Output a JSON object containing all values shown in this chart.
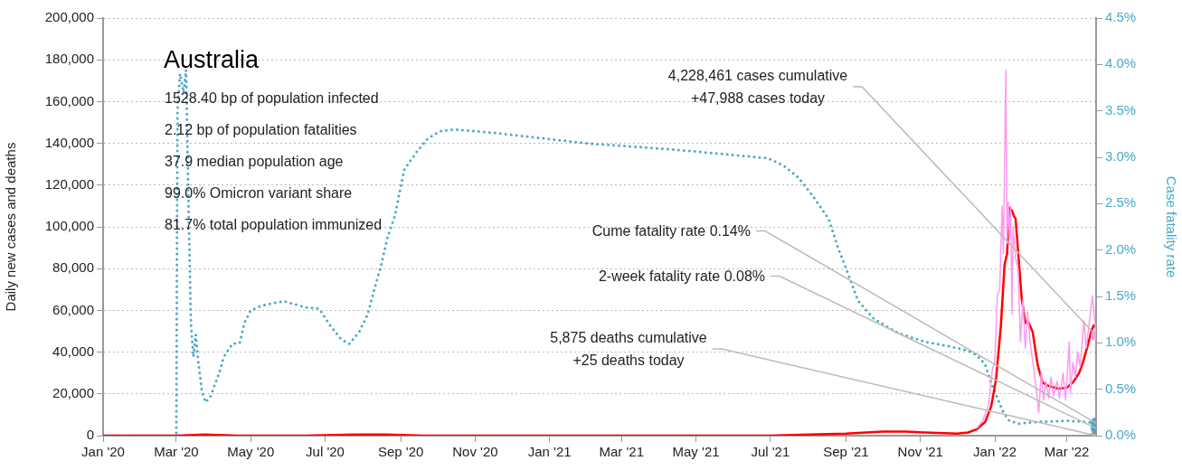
{
  "chart_data": {
    "type": "line",
    "title": "Australia",
    "ylabel": "Daily new cases and deaths",
    "y2label": "Case fatality rate",
    "annotations": [
      "1528.40 bp of population infected",
      "2.12 bp of population fatalities",
      "37.9 median population age",
      "99.0% Omicron variant share",
      "81.7% total population immunized",
      {
        "text": "4,228,461 cases cumulative\n+47,988 cases today",
        "x": "2022-03-25",
        "y": 47988
      },
      {
        "text": "Cume fatality rate 0.14%",
        "x": "2022-03-25",
        "y": 6000
      },
      {
        "text": "2-week fatality rate 0.08%",
        "x": "2022-03-25",
        "y": 3500
      },
      {
        "text": "5,875 deaths cumulative\n+25 deaths today",
        "x": "2022-03-25",
        "y": 25
      }
    ],
    "xlim": [
      "2020-01-01",
      "2022-03-25"
    ],
    "xticks": [
      {
        "value": "2020-01-01",
        "label": "Jan '20"
      },
      {
        "value": "2020-03-01",
        "label": "Mar '20"
      },
      {
        "value": "2020-05-01",
        "label": "May '20"
      },
      {
        "value": "2020-07-01",
        "label": "Jul '20"
      },
      {
        "value": "2020-09-01",
        "label": "Sep '20"
      },
      {
        "value": "2020-11-01",
        "label": "Nov '20"
      },
      {
        "value": "2021-01-01",
        "label": "Jan '21"
      },
      {
        "value": "2021-03-01",
        "label": "Mar '21"
      },
      {
        "value": "2021-05-01",
        "label": "May '21"
      },
      {
        "value": "2021-07-01",
        "label": "Jul '21"
      },
      {
        "value": "2021-09-01",
        "label": "Sep '21"
      },
      {
        "value": "2021-11-01",
        "label": "Nov '21"
      },
      {
        "value": "2022-01-01",
        "label": "Jan '22"
      },
      {
        "value": "2022-03-01",
        "label": "Mar '22"
      }
    ],
    "ylim": [
      0,
      200000
    ],
    "yticks": [
      0,
      {
        "value": 20000,
        "label": "20,000"
      },
      {
        "value": 40000,
        "label": "40,000"
      },
      {
        "value": 60000,
        "label": "60,000"
      },
      {
        "value": 80000,
        "label": "80,000"
      },
      {
        "value": 100000,
        "label": "100,000"
      },
      {
        "value": 120000,
        "label": "120,000"
      },
      {
        "value": 140000,
        "label": "140,000"
      },
      {
        "value": 160000,
        "label": "160,000"
      },
      {
        "value": 180000,
        "label": "180,000"
      },
      {
        "value": 200000,
        "label": "200,000"
      }
    ],
    "y2lim": [
      0,
      4.5
    ],
    "y2ticks": [
      {
        "value": 0,
        "label": "0.0%"
      },
      {
        "value": 0.5,
        "label": "0.5%"
      },
      {
        "value": 1,
        "label": "1.0%"
      },
      {
        "value": 1.5,
        "label": "1.5%"
      },
      {
        "value": 2,
        "label": "2.0%"
      },
      {
        "value": 2.5,
        "label": "2.5%"
      },
      {
        "value": 3,
        "label": "3.0%"
      },
      {
        "value": 3.5,
        "label": "3.5%"
      },
      {
        "value": 4,
        "label": "4.0%"
      },
      {
        "value": 4.5,
        "label": "4.5%"
      }
    ],
    "grid": "y",
    "legend": false,
    "series": [
      {
        "color": "#ff99ee",
        "x": [
          "2021-12-17",
          "2021-12-22",
          "2021-12-27",
          "2021-12-30",
          "2022-01-01",
          "2022-01-03",
          "2022-01-05",
          "2022-01-07",
          "2022-01-08",
          "2022-01-10",
          "2022-01-11",
          "2022-01-12",
          "2022-01-13",
          "2022-01-14",
          "2022-01-15",
          "2022-01-16",
          "2022-01-18",
          "2022-01-20",
          "2022-01-22",
          "2022-01-24",
          "2022-01-26",
          "2022-01-28",
          "2022-01-30",
          "2022-02-02",
          "2022-02-04",
          "2022-02-06",
          "2022-02-08",
          "2022-02-10",
          "2022-02-12",
          "2022-02-14",
          "2022-02-16",
          "2022-02-18",
          "2022-02-21",
          "2022-02-23",
          "2022-02-26",
          "2022-02-28",
          "2022-03-03",
          "2022-03-04",
          "2022-03-06",
          "2022-03-08",
          "2022-03-10",
          "2022-03-12",
          "2022-03-15",
          "2022-03-17",
          "2022-03-20",
          "2022-03-22",
          "2022-03-25"
        ],
        "values": [
          3500,
          7000,
          15000,
          32000,
          35000,
          67000,
          70000,
          110000,
          87000,
          175000,
          92000,
          112000,
          95000,
          110000,
          58000,
          100000,
          85000,
          80000,
          45000,
          65000,
          42000,
          59000,
          44000,
          32000,
          22000,
          11000,
          30000,
          17000,
          26000,
          18000,
          28000,
          19000,
          26000,
          18000,
          30000,
          17000,
          45000,
          20000,
          35000,
          28000,
          40000,
          33000,
          55000,
          42000,
          57000,
          67000,
          47988
        ]
      },
      {
        "color": "#ff0000",
        "x": [
          "2020-01-01",
          "2020-03-01",
          "2020-03-25",
          "2020-04-20",
          "2020-06-15",
          "2020-07-25",
          "2020-08-20",
          "2020-09-20",
          "2021-06-01",
          "2021-07-01",
          "2021-08-01",
          "2021-09-01",
          "2021-10-01",
          "2021-10-20",
          "2021-11-05",
          "2021-12-01",
          "2021-12-10",
          "2021-12-17",
          "2021-12-24",
          "2021-12-29",
          "2022-01-02",
          "2022-01-06",
          "2022-01-09",
          "2022-01-11",
          "2022-01-13",
          "2022-01-15",
          "2022-01-17",
          "2022-01-18",
          "2022-01-20",
          "2022-01-23",
          "2022-01-26",
          "2022-01-28",
          "2022-02-01",
          "2022-02-05",
          "2022-02-09",
          "2022-02-14",
          "2022-02-22",
          "2022-03-01",
          "2022-03-06",
          "2022-03-11",
          "2022-03-14",
          "2022-03-18",
          "2022-03-21",
          "2022-03-23",
          "2022-03-25"
        ],
        "values": [
          0,
          0,
          500,
          0,
          0,
          500,
          500,
          0,
          0,
          0,
          500,
          1000,
          2000,
          2000,
          1500,
          1000,
          1500,
          3000,
          6500,
          14000,
          27000,
          53000,
          82000,
          87000,
          109000,
          107800,
          104800,
          104000,
          88700,
          65800,
          54000,
          55000,
          49800,
          34200,
          25500,
          23800,
          22500,
          23000,
          25500,
          29900,
          34600,
          42900,
          49800,
          52800,
          52000
        ]
      },
      {
        "axis": "y2",
        "color": "#4aa8c8",
        "line_style": "dotted",
        "x": [
          "2020-01-01",
          "2020-03-01",
          "2020-03-02",
          "2020-03-04",
          "2020-03-07",
          "2020-03-09",
          "2020-03-11",
          "2020-03-13",
          "2020-03-15",
          "2020-03-17",
          "2020-03-19",
          "2020-03-22",
          "2020-03-25",
          "2020-03-29",
          "2020-04-05",
          "2020-04-09",
          "2020-04-16",
          "2020-04-22",
          "2020-04-26",
          "2020-05-01",
          "2020-05-10",
          "2020-05-28",
          "2020-06-16",
          "2020-06-26",
          "2020-07-05",
          "2020-07-14",
          "2020-07-21",
          "2020-07-29",
          "2020-08-05",
          "2020-08-11",
          "2020-08-16",
          "2020-08-21",
          "2020-08-27",
          "2020-09-01",
          "2020-09-04",
          "2020-09-13",
          "2020-09-23",
          "2020-10-03",
          "2020-10-15",
          "2020-11-19",
          "2021-02-01",
          "2021-04-16",
          "2021-06-29",
          "2021-07-12",
          "2021-07-24",
          "2021-08-05",
          "2021-08-18",
          "2021-08-25",
          "2021-09-02",
          "2021-09-11",
          "2021-09-24",
          "2021-10-13",
          "2021-11-05",
          "2021-11-22",
          "2021-12-09",
          "2021-12-17",
          "2021-12-24",
          "2021-12-29",
          "2022-01-03",
          "2022-01-08",
          "2022-01-13",
          "2022-01-21",
          "2022-02-07",
          "2022-03-03",
          "2022-03-25"
        ],
        "values": [
          0,
          0,
          3.5,
          3.9,
          3.7,
          3.94,
          2.5,
          1.2,
          0.85,
          1.09,
          0.8,
          0.48,
          0.36,
          0.42,
          0.67,
          0.85,
          0.99,
          1.0,
          1.22,
          1.35,
          1.4,
          1.45,
          1.38,
          1.37,
          1.19,
          1.04,
          0.99,
          1.12,
          1.31,
          1.61,
          1.84,
          2.13,
          2.36,
          2.68,
          2.87,
          3.04,
          3.2,
          3.28,
          3.3,
          3.26,
          3.15,
          3.08,
          2.99,
          2.91,
          2.78,
          2.58,
          2.33,
          2.04,
          1.77,
          1.45,
          1.26,
          1.11,
          1.01,
          0.97,
          0.92,
          0.87,
          0.77,
          0.57,
          0.41,
          0.25,
          0.16,
          0.13,
          0.15,
          0.16,
          0.14
        ]
      },
      {
        "type": "scatter",
        "color": "#ff99ee",
        "marker": "circle",
        "x": [
          "2022-03-25"
        ],
        "values": [
          47988
        ]
      },
      {
        "type": "scatter",
        "axis": "y2",
        "color": "#4aa8c8",
        "marker": "circle",
        "x": [
          "2022-03-25"
        ],
        "values": [
          0.14
        ]
      },
      {
        "type": "scatter",
        "axis": "y2",
        "color": "#4aa8c8",
        "marker": "circle",
        "x": [
          "2022-03-25"
        ],
        "values": [
          0.08
        ]
      },
      {
        "type": "scatter",
        "color": "#999999",
        "marker": "circle",
        "x": [
          "2022-03-25"
        ],
        "values": [
          25
        ]
      }
    ]
  }
}
